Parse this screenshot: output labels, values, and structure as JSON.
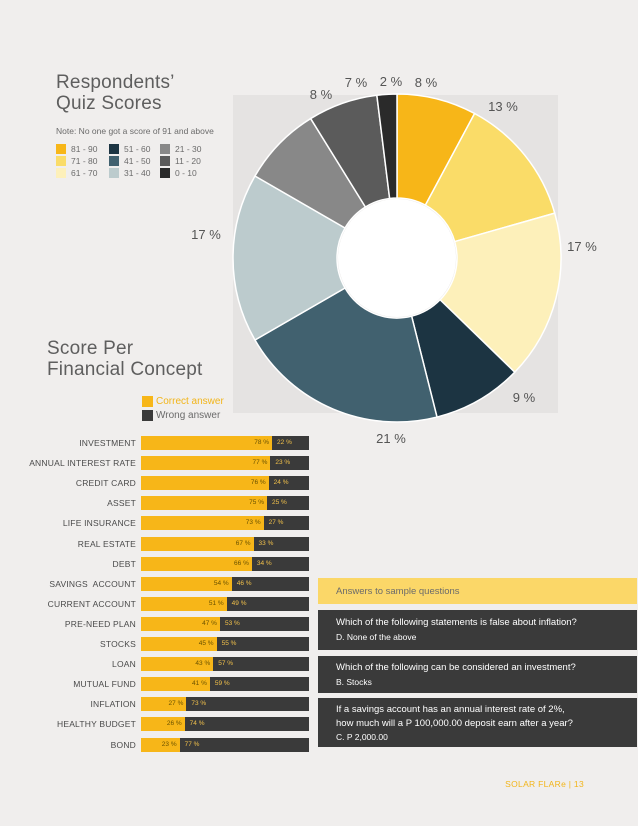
{
  "header": {
    "title_line1": "Respondents’",
    "title_line2": "Quiz Scores",
    "note": "Note: No one got a score of 91 and above"
  },
  "score_legend": [
    {
      "label": "81 - 90",
      "color": "#f7b618"
    },
    {
      "label": "51 - 60",
      "color": "#1c3442"
    },
    {
      "label": "21 - 30",
      "color": "#888888"
    },
    {
      "label": "71 - 80",
      "color": "#fadc68"
    },
    {
      "label": "41 - 50",
      "color": "#41616f"
    },
    {
      "label": "11 - 20",
      "color": "#5b5b5b"
    },
    {
      "label": "61 - 70",
      "color": "#fdf0ba"
    },
    {
      "label": "31 - 40",
      "color": "#bccbcd"
    },
    {
      "label": "0 - 10",
      "color": "#2a2a2a"
    }
  ],
  "concept": {
    "title_line1": "Score Per",
    "title_line2": "Financial Concept",
    "legend_correct": "Correct answer",
    "legend_wrong": "Wrong answer",
    "correct_color": "#f7b618",
    "wrong_color": "#3a3a3a"
  },
  "chart_data": [
    {
      "type": "pie",
      "title": "Respondents’ Quiz Scores",
      "slices": [
        {
          "label": "81 - 90",
          "value": 8,
          "display": "8 %",
          "color": "#f7b618"
        },
        {
          "label": "71 - 80",
          "value": 13,
          "display": "13 %",
          "color": "#fadc68"
        },
        {
          "label": "61 - 70",
          "value": 17,
          "display": "17 %",
          "color": "#fdf0ba"
        },
        {
          "label": "51 - 60",
          "value": 9,
          "display": "9 %",
          "color": "#1c3442"
        },
        {
          "label": "41 - 50",
          "value": 21,
          "display": "21 %",
          "color": "#41616f"
        },
        {
          "label": "31 - 40",
          "value": 17,
          "display": "17 %",
          "color": "#bccbcd"
        },
        {
          "label": "21 - 30",
          "value": 8,
          "display": "8 %",
          "color": "#888888"
        },
        {
          "label": "11 - 20",
          "value": 7,
          "display": "7 %",
          "color": "#5b5b5b"
        },
        {
          "label": "0 - 10",
          "value": 2,
          "display": "2 %",
          "color": "#2a2a2a"
        }
      ]
    },
    {
      "type": "bar",
      "stacked": true,
      "orientation": "horizontal",
      "title": "Score Per Financial Concept",
      "categories": [
        "INVESTMENT",
        "ANNUAL INTEREST RATE",
        "CREDIT CARD",
        "ASSET",
        "LIFE INSURANCE",
        "REAL ESTATE",
        "DEBT",
        "SAVINGS  ACCOUNT",
        "CURRENT ACCOUNT",
        "PRE-NEED PLAN",
        "STOCKS",
        "LOAN",
        "MUTUAL FUND",
        "INFLATION",
        "HEALTHY BUDGET",
        "BOND"
      ],
      "series": [
        {
          "name": "Correct answer",
          "values": [
            78,
            77,
            76,
            75,
            73,
            67,
            66,
            54,
            51,
            47,
            45,
            43,
            41,
            27,
            26,
            23
          ],
          "labels": [
            "78 %",
            "77 %",
            "76 %",
            "75 %",
            "73 %",
            "67 %",
            "66 %",
            "54 %",
            "51 %",
            "47 %",
            "45 %",
            "43 %",
            "41 %",
            "27 %",
            "26 %",
            "23 %"
          ]
        },
        {
          "name": "Wrong answer",
          "values": [
            22,
            23,
            24,
            25,
            27,
            33,
            34,
            46,
            49,
            53,
            55,
            57,
            59,
            73,
            74,
            77
          ],
          "labels": [
            "22 %",
            "23 %",
            "24 %",
            "25 %",
            "27 %",
            "33 %",
            "34 %",
            "46 %",
            "49 %",
            "53 %",
            "55 %",
            "57 %",
            "59 %",
            "73 %",
            "74 %",
            "77 %"
          ]
        }
      ]
    }
  ],
  "answers": {
    "header": "Answers to sample questions",
    "items": [
      {
        "question": "Which of the following statements is false about inflation?",
        "answer": "D.     None of the above"
      },
      {
        "question": "Which of the following can be considered an investment?",
        "answer": "B.     Stocks"
      },
      {
        "question_line1": "If a savings account has an annual interest rate of 2%,",
        "question_line2": "how much will a P 100,000.00 deposit earn after a year?",
        "answer": "C.     P 2,000.00"
      }
    ]
  },
  "footer": "SOLAR FLARe  |  13"
}
